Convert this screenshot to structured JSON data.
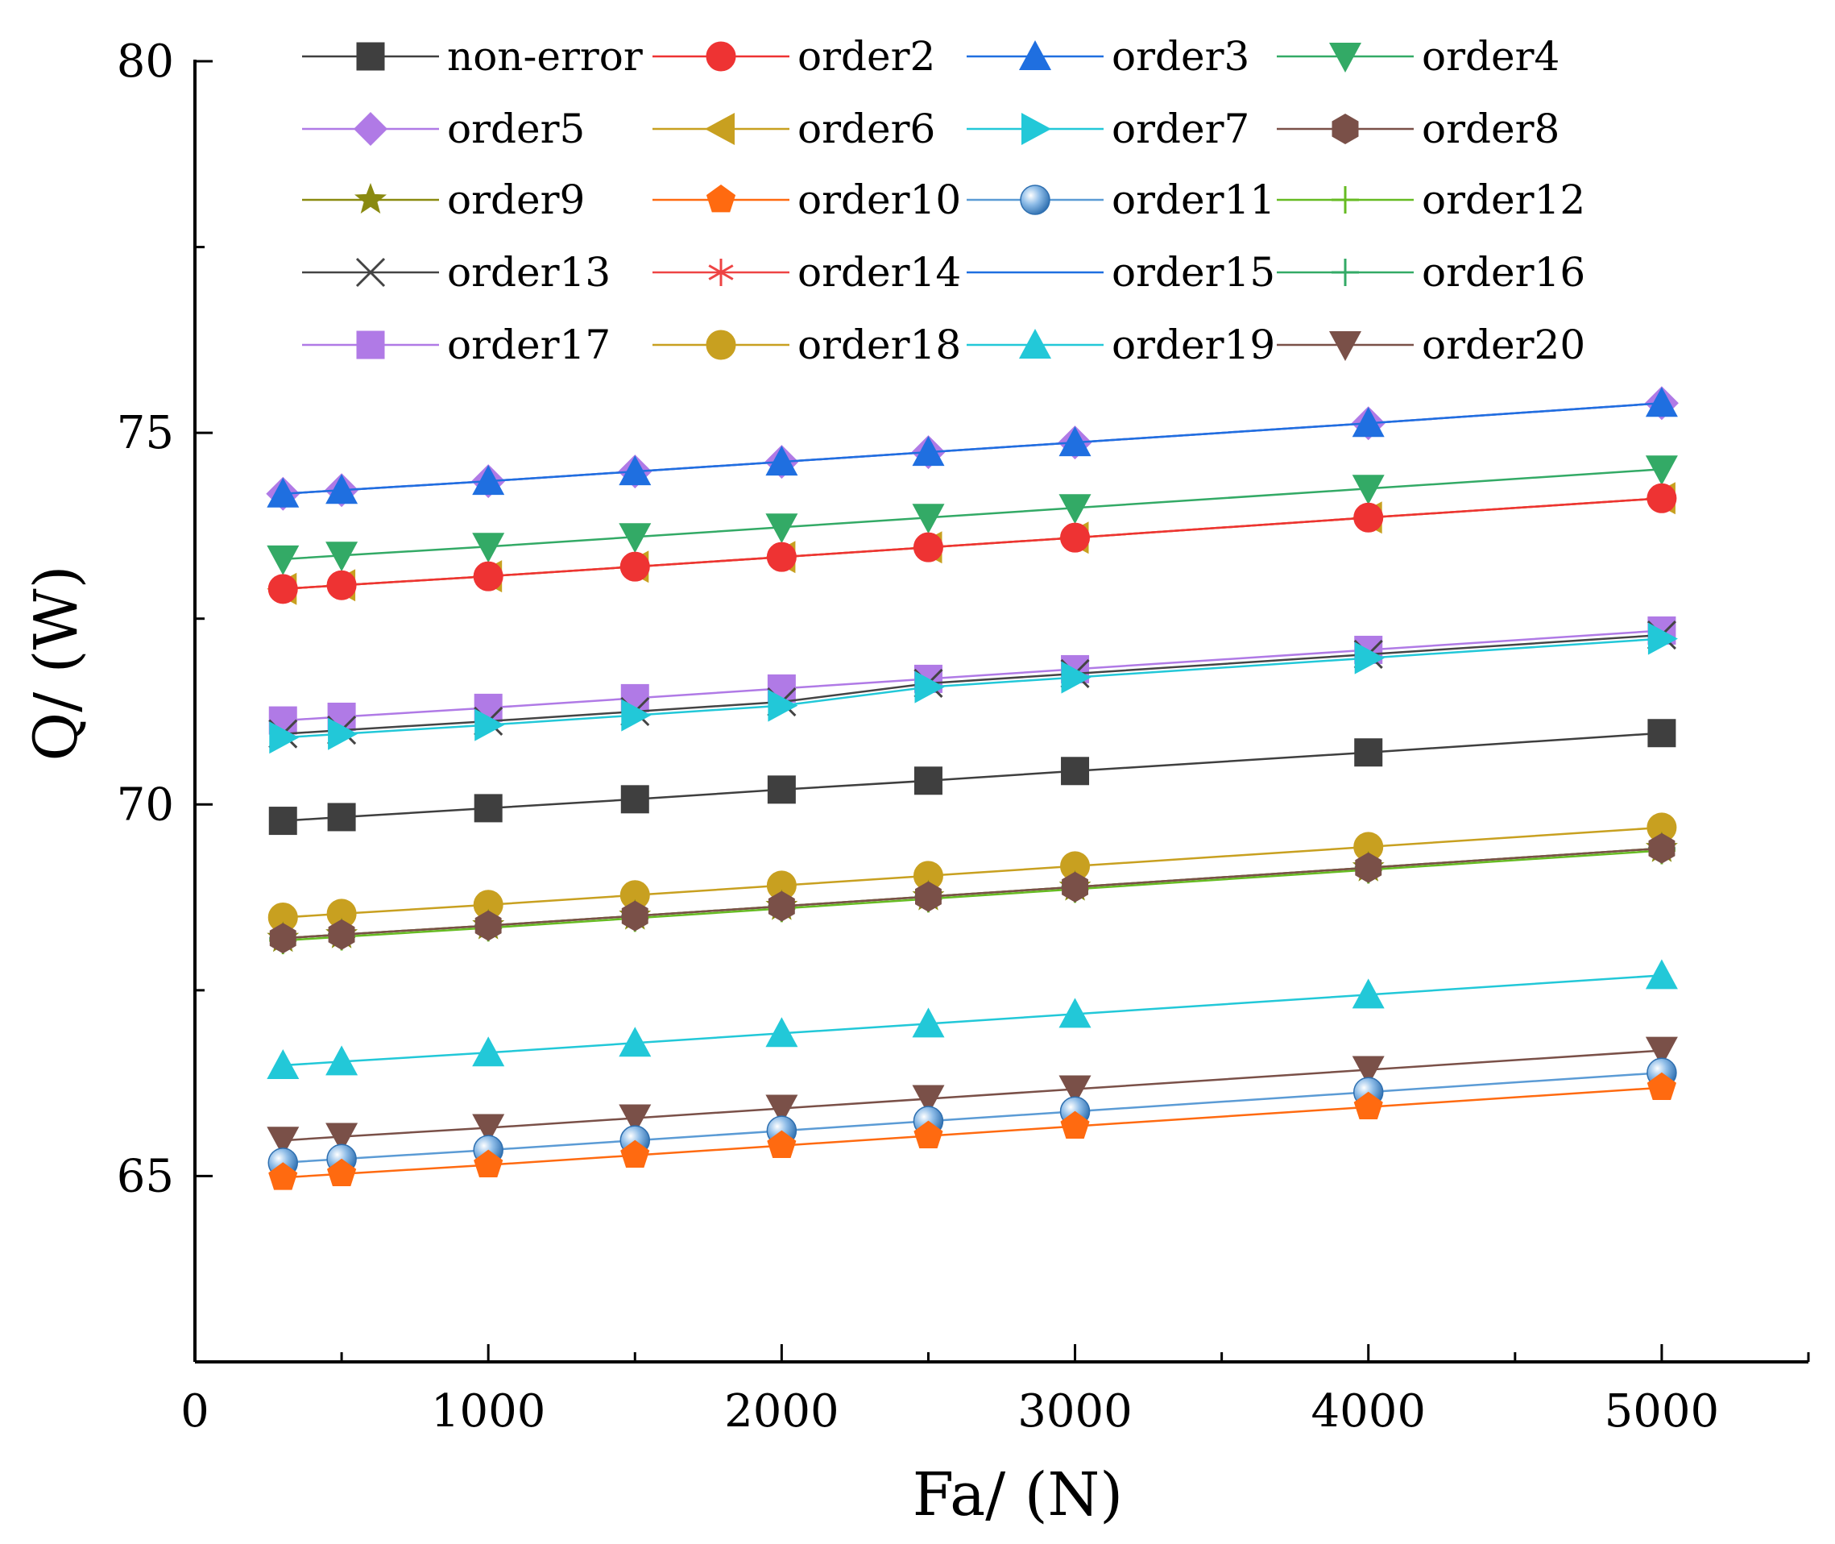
{
  "chart_data": {
    "type": "line",
    "title": "",
    "xlabel": "Fa/ (N)",
    "ylabel": "Q/ (W)",
    "xlim": [
      0,
      5500
    ],
    "ylim": [
      62.5,
      80
    ],
    "xticks": [
      0,
      1000,
      2000,
      3000,
      4000,
      5000
    ],
    "yticks": [
      65,
      70,
      75,
      80
    ],
    "grid": false,
    "legend_position": "top",
    "x": [
      300,
      500,
      1000,
      1500,
      2000,
      2500,
      3000,
      4000,
      5000
    ],
    "series": [
      {
        "name": "non-error",
        "color": "#3f3f3f",
        "marker": "square",
        "values": [
          69.78,
          69.83,
          69.95,
          70.07,
          70.2,
          70.32,
          70.45,
          70.7,
          70.96
        ]
      },
      {
        "name": "order2",
        "color": "#ee3333",
        "marker": "circle",
        "values": [
          72.9,
          72.95,
          73.07,
          73.2,
          73.33,
          73.46,
          73.59,
          73.86,
          74.12
        ]
      },
      {
        "name": "order3",
        "color": "#1f6fe0",
        "marker": "triangle-up",
        "values": [
          74.18,
          74.23,
          74.35,
          74.48,
          74.61,
          74.74,
          74.87,
          75.13,
          75.4
        ]
      },
      {
        "name": "order4",
        "color": "#33aa66",
        "marker": "triangle-down",
        "values": [
          73.3,
          73.35,
          73.47,
          73.6,
          73.73,
          73.86,
          73.99,
          74.25,
          74.51
        ]
      },
      {
        "name": "order5",
        "color": "#b07ae6",
        "marker": "diamond",
        "values": [
          74.18,
          74.23,
          74.35,
          74.48,
          74.61,
          74.74,
          74.87,
          75.13,
          75.4
        ]
      },
      {
        "name": "order6",
        "color": "#c8a020",
        "marker": "triangle-left",
        "values": [
          72.9,
          72.95,
          73.07,
          73.2,
          73.33,
          73.46,
          73.59,
          73.86,
          74.12
        ]
      },
      {
        "name": "order7",
        "color": "#22c8d8",
        "marker": "triangle-right",
        "values": [
          70.9,
          70.95,
          71.07,
          71.2,
          71.33,
          71.58,
          71.71,
          71.97,
          72.23
        ]
      },
      {
        "name": "order8",
        "color": "#7a5048",
        "marker": "hexagon",
        "values": [
          68.2,
          68.25,
          68.37,
          68.5,
          68.63,
          68.76,
          68.89,
          69.15,
          69.41
        ]
      },
      {
        "name": "order9",
        "color": "#8a8a10",
        "marker": "star",
        "values": [
          68.2,
          68.25,
          68.37,
          68.5,
          68.63,
          68.76,
          68.89,
          69.15,
          69.41
        ]
      },
      {
        "name": "order10",
        "color": "#ff6a10",
        "marker": "pentagon",
        "values": [
          64.98,
          65.03,
          65.15,
          65.28,
          65.41,
          65.54,
          65.67,
          65.93,
          66.19
        ]
      },
      {
        "name": "order11",
        "color": "#5b9bd5",
        "marker": "sphere",
        "values": [
          65.18,
          65.23,
          65.35,
          65.48,
          65.61,
          65.74,
          65.87,
          66.13,
          66.39
        ]
      },
      {
        "name": "order12",
        "color": "#66bb22",
        "marker": "plus",
        "values": [
          68.17,
          68.22,
          68.34,
          68.47,
          68.6,
          68.73,
          68.86,
          69.12,
          69.38
        ]
      },
      {
        "name": "order13",
        "color": "#444444",
        "marker": "x",
        "values": [
          70.95,
          71.0,
          71.12,
          71.25,
          71.38,
          71.63,
          71.76,
          72.02,
          72.28
        ]
      },
      {
        "name": "order14",
        "color": "#ee4444",
        "marker": "asterisk",
        "values": [
          72.9,
          72.95,
          73.07,
          73.2,
          73.33,
          73.46,
          73.59,
          73.86,
          74.12
        ]
      },
      {
        "name": "order15",
        "color": "#1f6fe0",
        "marker": "dash",
        "values": [
          74.18,
          74.23,
          74.35,
          74.48,
          74.61,
          74.74,
          74.87,
          75.13,
          75.4
        ]
      },
      {
        "name": "order16",
        "color": "#33aa66",
        "marker": "plus",
        "values": [
          68.2,
          68.25,
          68.37,
          68.5,
          68.63,
          68.76,
          68.89,
          69.15,
          69.41
        ]
      },
      {
        "name": "order17",
        "color": "#b07ae6",
        "marker": "square",
        "values": [
          71.13,
          71.18,
          71.3,
          71.43,
          71.56,
          71.69,
          71.82,
          72.08,
          72.34
        ]
      },
      {
        "name": "order18",
        "color": "#c8a020",
        "marker": "circle",
        "values": [
          68.48,
          68.53,
          68.65,
          68.78,
          68.91,
          69.04,
          69.17,
          69.43,
          69.69
        ]
      },
      {
        "name": "order19",
        "color": "#22c8d8",
        "marker": "triangle-up",
        "values": [
          66.49,
          66.54,
          66.66,
          66.79,
          66.92,
          67.05,
          67.18,
          67.44,
          67.7
        ]
      },
      {
        "name": "order20",
        "color": "#7a5048",
        "marker": "triangle-down",
        "values": [
          65.48,
          65.53,
          65.65,
          65.78,
          65.91,
          66.04,
          66.17,
          66.43,
          66.69
        ]
      }
    ]
  }
}
